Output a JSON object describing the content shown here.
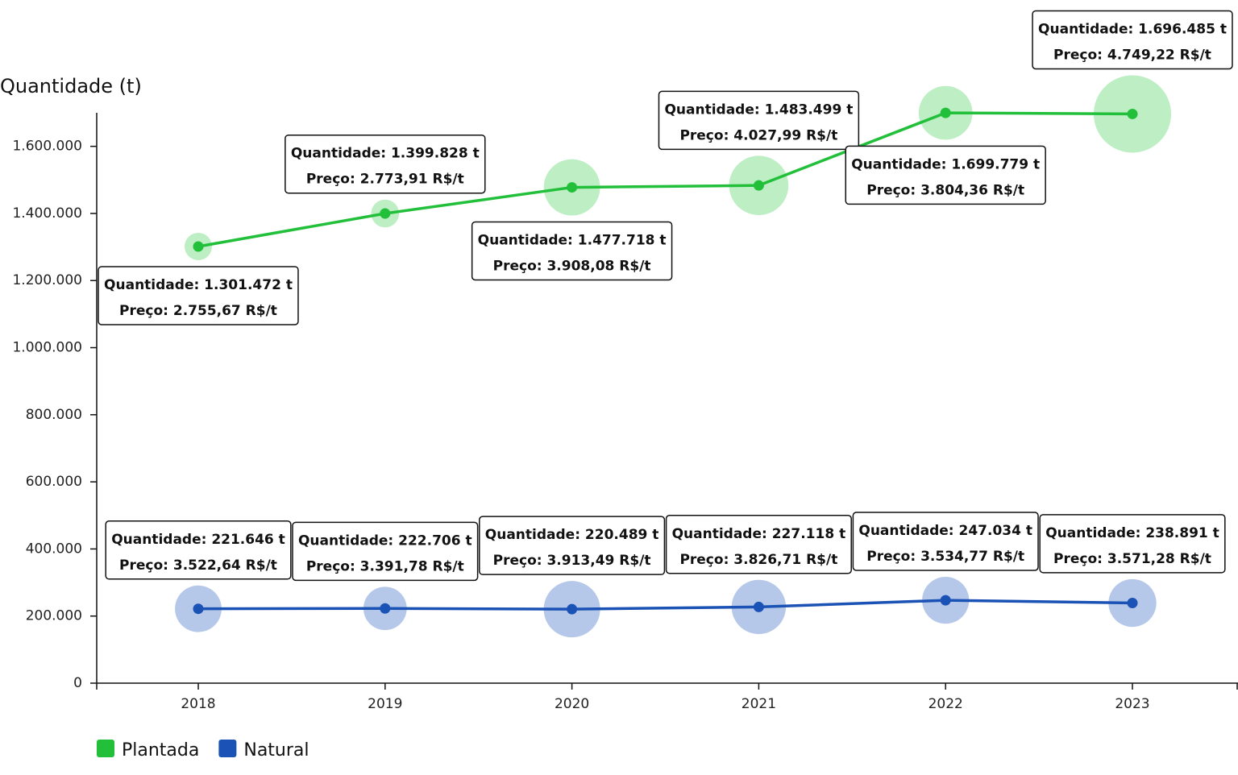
{
  "chart_data": {
    "type": "bubble-line",
    "y_label": "Quantidade (t)",
    "categories": [
      "2018",
      "2019",
      "2020",
      "2021",
      "2022",
      "2023"
    ],
    "ylim": [
      0,
      1700000
    ],
    "yticks": [
      0,
      {
        "value": 200000,
        "label": "200.000"
      },
      {
        "value": 400000,
        "label": "400.000"
      },
      {
        "value": 600000,
        "label": "600.000"
      },
      {
        "value": 800000,
        "label": "800.000"
      },
      {
        "value": 1000000,
        "label": "1.000.000"
      },
      {
        "value": 1200000,
        "label": "1.200.000"
      },
      {
        "value": 1400000,
        "label": "1.400.000"
      },
      {
        "value": 1600000,
        "label": "1.600.000"
      }
    ],
    "series": [
      {
        "name": "Plantada",
        "color": "#22c03a",
        "bubble_color": "#bdeec4",
        "values": [
          1301472,
          1399828,
          1477718,
          1483499,
          1699779,
          1696485
        ],
        "value_labels": [
          "Quantidade: 1.301.472 t",
          "Quantidade: 1.399.828 t",
          "Quantidade: 1.477.718 t",
          "Quantidade: 1.483.499 t",
          "Quantidade: 1.699.779 t",
          "Quantidade: 1.696.485 t"
        ],
        "sizes": [
          2755.67,
          2773.91,
          3908.08,
          4027.99,
          3804.36,
          4749.22
        ],
        "size_labels": [
          "Preço: 2.755,67 R$/t",
          "Preço: 2.773,91 R$/t",
          "Preço: 3.908,08 R$/t",
          "Preço: 4.027,99 R$/t",
          "Preço: 3.804,36 R$/t",
          "Preço: 4.749,22 R$/t"
        ]
      },
      {
        "name": "Natural",
        "color": "#1a52b5",
        "bubble_color": "#b6c8e9",
        "values": [
          221646,
          222706,
          220489,
          227118,
          247034,
          238891
        ],
        "value_labels": [
          "Quantidade: 221.646 t",
          "Quantidade: 222.706 t",
          "Quantidade: 220.489 t",
          "Quantidade: 227.118 t",
          "Quantidade: 247.034 t",
          "Quantidade: 238.891 t"
        ],
        "sizes": [
          3522.64,
          3391.78,
          3913.49,
          3826.71,
          3534.77,
          3571.28
        ],
        "size_labels": [
          "Preço: 3.522,64 R$/t",
          "Preço: 3.391,78 R$/t",
          "Preço: 3.913,49 R$/t",
          "Preço: 3.826,71 R$/t",
          "Preço: 3.534,77 R$/t",
          "Preço: 3.571,28 R$/t"
        ]
      }
    ]
  }
}
